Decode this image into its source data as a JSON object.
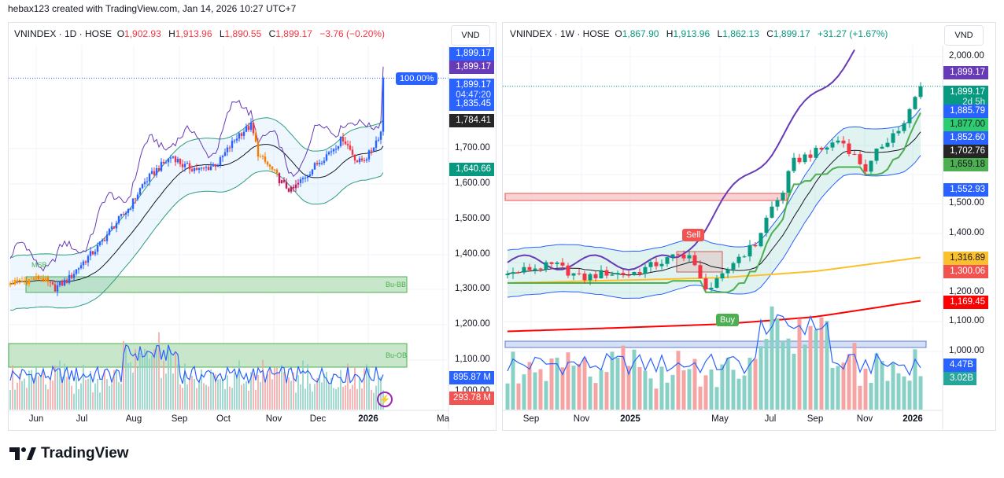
{
  "header": {
    "caption": "hebax123 created with TradingView.com, Jan 14, 2026 10:27 UTC+7"
  },
  "left": {
    "symbol": "VNINDEX · 1D · HOSE",
    "o_label": "O",
    "o": "1,902.93",
    "h_label": "H",
    "h": "1,913.96",
    "l_label": "L",
    "l": "1,890.55",
    "c_label": "C",
    "c": "1,899.17",
    "change": "−3.76 (−0.20%)",
    "change_color": "#f23645",
    "currency": "VND",
    "price_ticks": [
      "1,700.00",
      "1,600.00",
      "1,500.00",
      "1,400.00",
      "1,300.00",
      "1,200.00",
      "1,100.00",
      "1,000.00"
    ],
    "time_ticks": [
      "Jun",
      "Jul",
      "Aug",
      "Sep",
      "Oct",
      "Nov",
      "Dec",
      "2026",
      "Ma"
    ],
    "badges": [
      {
        "text": "1,899.17",
        "color": "#2962ff"
      },
      {
        "text": "1,899.17",
        "color": "#673ab7"
      },
      {
        "text": "1,899.17",
        "sub": "04:47:20",
        "color": "#2962ff"
      },
      {
        "text": "1,835.45",
        "color": "#2962ff"
      },
      {
        "text": "1,784.41",
        "color": "#262626"
      },
      {
        "text": "1,640.66",
        "color": "#089981"
      },
      {
        "text": "895.87 M",
        "color": "#2962ff"
      },
      {
        "text": "293.78 M",
        "color": "#f05350"
      }
    ],
    "pct_label": "100.00%",
    "annotations": {
      "msb": "MSB",
      "bu_bb": "Bu-BB",
      "bu_ob": "Bu-OB"
    },
    "bolt_icon": "lightning-icon"
  },
  "right": {
    "symbol": "VNINDEX · 1W · HOSE",
    "o_label": "O",
    "o": "1,867.90",
    "h_label": "H",
    "h": "1,913.96",
    "l_label": "L",
    "l": "1,862.13",
    "c_label": "C",
    "c": "1,899.17",
    "change": "+31.27 (+1.67%)",
    "change_color": "#089981",
    "currency": "VND",
    "price_ticks": [
      "2,000.00",
      "1,500.00",
      "1,400.00",
      "1,200.00",
      "1,100.00",
      "1,000.00"
    ],
    "time_ticks": [
      "Sep",
      "Nov",
      "2025",
      "May",
      "Jul",
      "Sep",
      "Nov",
      "2026"
    ],
    "badges": [
      {
        "text": "1,899.17",
        "color": "#673ab7"
      },
      {
        "text": "1,899.17",
        "sub": "2d 5h",
        "color": "#089981"
      },
      {
        "text": "1,885.79",
        "color": "#2962ff"
      },
      {
        "text": "1,877.00",
        "color": "#2ecc71",
        "dark": true
      },
      {
        "text": "1,852.60",
        "color": "#2962ff"
      },
      {
        "text": "1,702.76",
        "color": "#262626"
      },
      {
        "text": "1,659.18",
        "color": "#4caf50",
        "dark": true
      },
      {
        "text": "1,552.93",
        "color": "#2962ff"
      },
      {
        "text": "1,316.89",
        "color": "#fbc02d",
        "dark": true
      },
      {
        "text": "1,300.06",
        "color": "#f05350"
      },
      {
        "text": "1,169.45",
        "color": "#ff0000"
      },
      {
        "text": "4.47B",
        "color": "#2962ff"
      },
      {
        "text": "3.02B",
        "color": "#26a69a"
      }
    ],
    "annotations": {
      "sell": "Sell",
      "buy": "Buy"
    }
  },
  "chart_data": [
    {
      "type": "candlestick",
      "title": "VNINDEX · 1D · HOSE",
      "time_unit": "months since Jun 2025",
      "ylim": [
        950,
        1950
      ],
      "close_keys": [
        [
          -0.55,
          1320
        ],
        [
          0.1,
          1335
        ],
        [
          0.4,
          1305
        ],
        [
          0.7,
          1330
        ],
        [
          1.0,
          1375
        ],
        [
          1.3,
          1420
        ],
        [
          1.6,
          1480
        ],
        [
          1.9,
          1530
        ],
        [
          2.2,
          1600
        ],
        [
          2.5,
          1640
        ],
        [
          2.85,
          1680
        ],
        [
          3.1,
          1650
        ],
        [
          3.5,
          1640
        ],
        [
          3.9,
          1660
        ],
        [
          4.3,
          1740
        ],
        [
          4.55,
          1765
        ],
        [
          4.7,
          1680
        ],
        [
          4.9,
          1650
        ],
        [
          5.2,
          1600
        ],
        [
          5.4,
          1580
        ],
        [
          5.7,
          1620
        ],
        [
          6.0,
          1660
        ],
        [
          6.3,
          1700
        ],
        [
          6.5,
          1730
        ],
        [
          6.8,
          1660
        ],
        [
          7.0,
          1680
        ],
        [
          7.2,
          1760
        ],
        [
          7.45,
          1899.17
        ]
      ],
      "volume_ma_last": "895.87 M",
      "volume_last": "293.78 M"
    },
    {
      "type": "candlestick",
      "title": "VNINDEX · 1W · HOSE",
      "time_unit": "months since Sep 2024",
      "ylim": [
        950,
        2050
      ],
      "close_keys": [
        [
          -1.1,
          1255
        ],
        [
          0,
          1280
        ],
        [
          1,
          1290
        ],
        [
          2,
          1245
        ],
        [
          3,
          1265
        ],
        [
          4,
          1260
        ],
        [
          5,
          1290
        ],
        [
          6,
          1320
        ],
        [
          6.6,
          1330
        ],
        [
          7.2,
          1225
        ],
        [
          7.6,
          1215
        ],
        [
          8,
          1240
        ],
        [
          8.6,
          1310
        ],
        [
          9.4,
          1360
        ],
        [
          10,
          1480
        ],
        [
          10.5,
          1530
        ],
        [
          11,
          1640
        ],
        [
          11.5,
          1660
        ],
        [
          12.2,
          1680
        ],
        [
          13,
          1720
        ],
        [
          13.6,
          1660
        ],
        [
          14.1,
          1610
        ],
        [
          14.6,
          1690
        ],
        [
          15.2,
          1740
        ],
        [
          15.6,
          1760
        ],
        [
          16.3,
          1899.17
        ]
      ],
      "ma_yellow_keys": [
        [
          -1.1,
          1230
        ],
        [
          8,
          1248
        ],
        [
          12,
          1270
        ],
        [
          16.3,
          1316.89
        ]
      ],
      "ma_red_keys": [
        [
          -1.1,
          1065
        ],
        [
          8,
          1090
        ],
        [
          12,
          1115
        ],
        [
          16.3,
          1169.45
        ]
      ],
      "volume_ma_last": "4.47B",
      "volume_last": "3.02B"
    }
  ]
}
